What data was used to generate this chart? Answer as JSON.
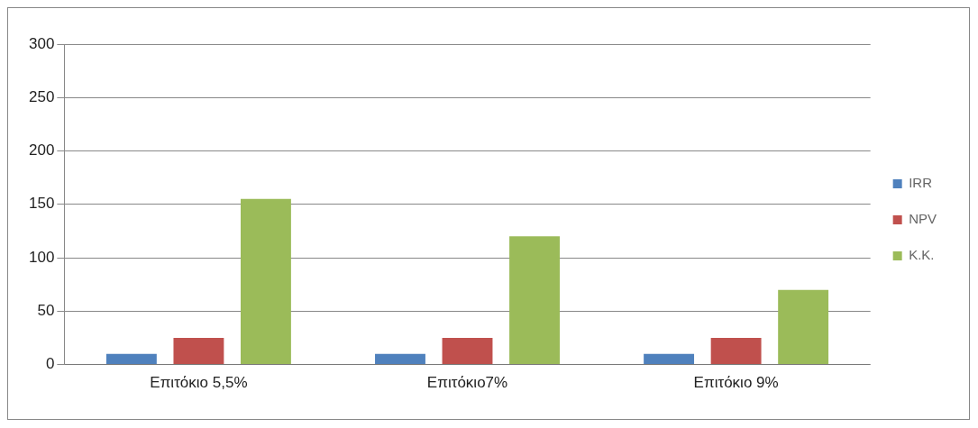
{
  "chart_data": {
    "type": "bar",
    "categories": [
      "Επιτόκιο 5,5%",
      "Επιτόκιο7%",
      "Επιτόκιο 9%"
    ],
    "series": [
      {
        "name": "IRR",
        "color": "#4f81bd",
        "values": [
          10,
          10,
          10
        ]
      },
      {
        "name": "NPV",
        "color": "#c0504d",
        "values": [
          25,
          25,
          25
        ]
      },
      {
        "name": "K.K.",
        "color": "#9bbb59",
        "values": [
          155,
          120,
          70
        ]
      }
    ],
    "ylim": [
      0,
      300
    ],
    "yticks": [
      0,
      50,
      100,
      150,
      200,
      250,
      300
    ],
    "grid": "y",
    "legend": "right"
  }
}
